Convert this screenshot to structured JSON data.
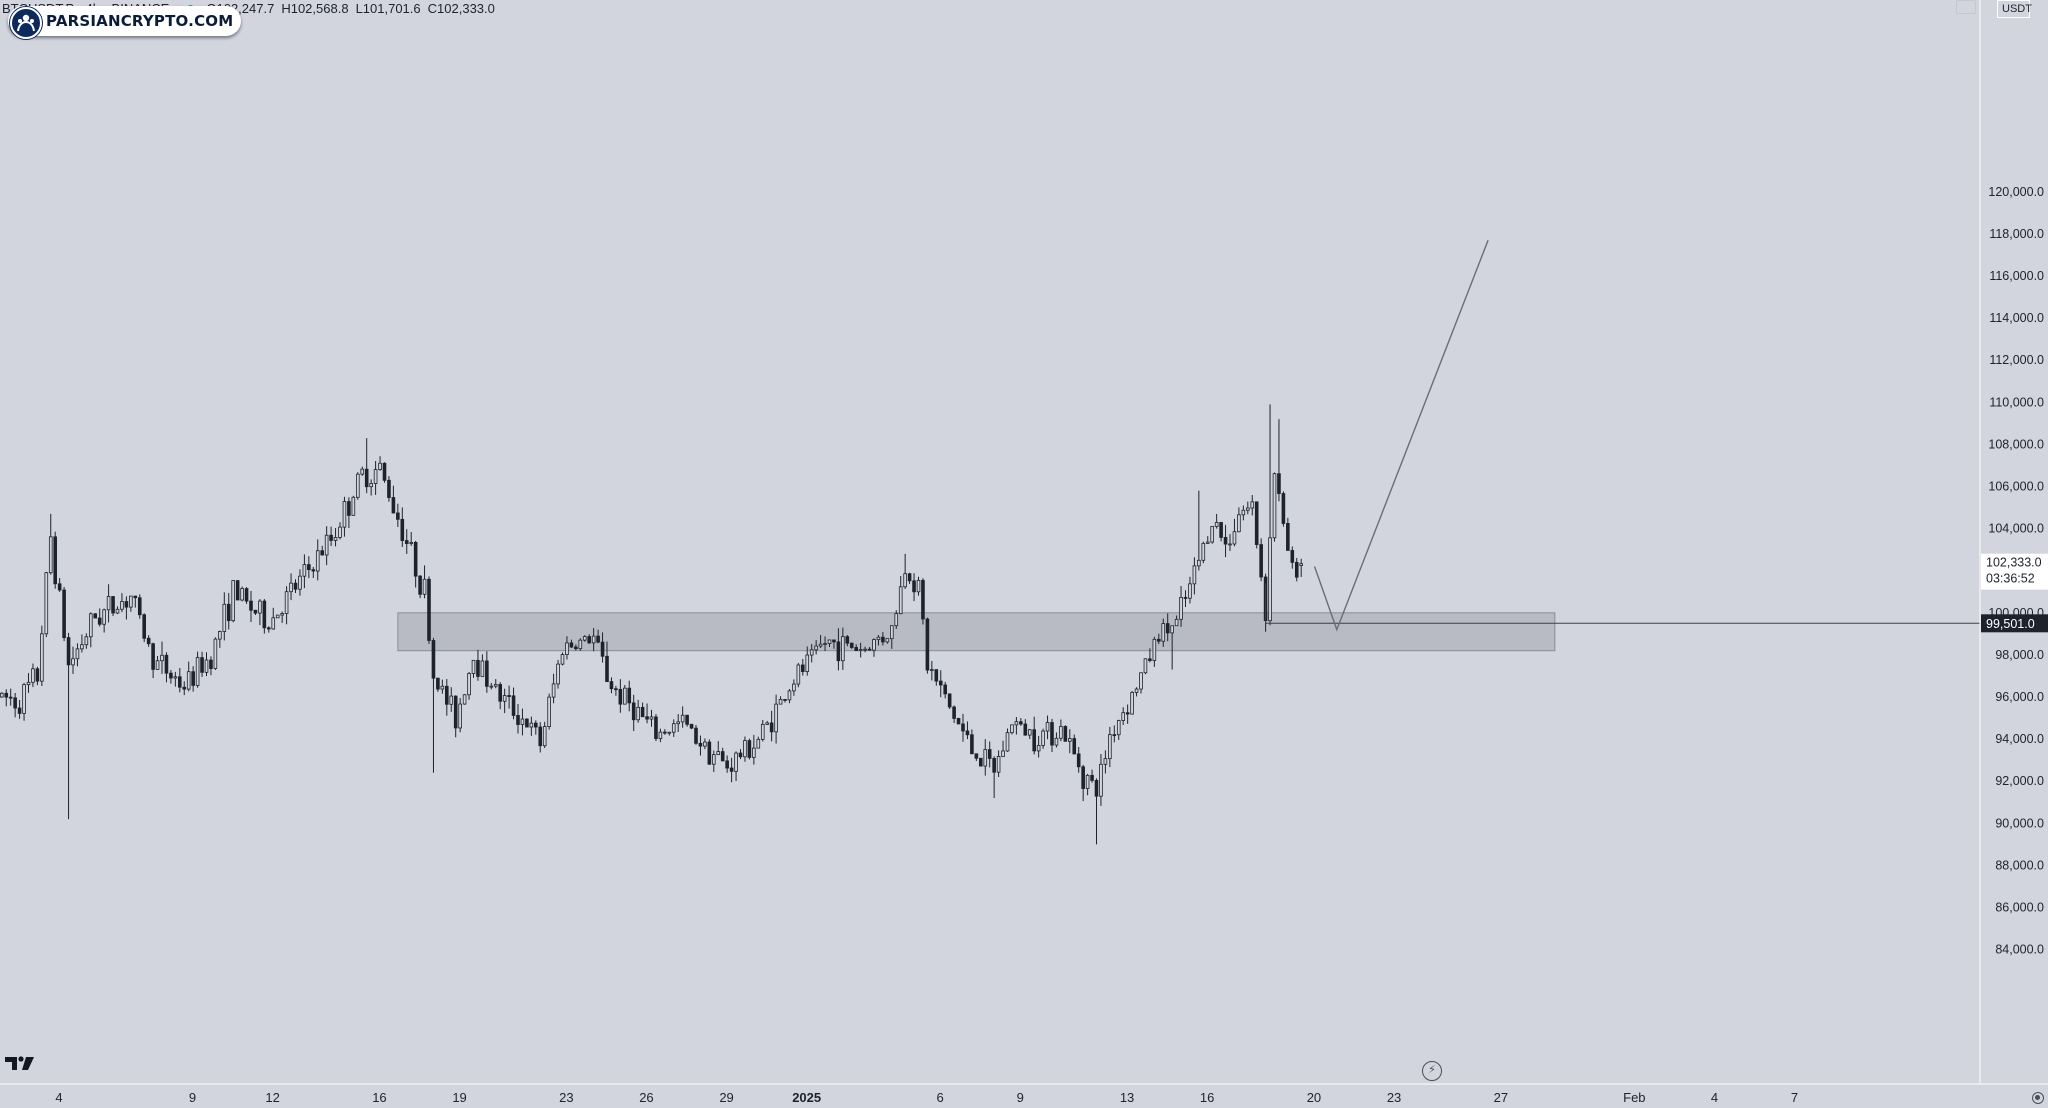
{
  "legend": {
    "symbol": "BTCUSDT.P · 4h · BINANCE",
    "open_label": "O",
    "open": "102,247.7",
    "high_label": "H",
    "high": "102,568.8",
    "low_label": "L",
    "low": "101,701.6",
    "close_label": "C",
    "close": "102,333.0",
    "status_color": "#2a9d8f"
  },
  "brand": {
    "text": "PARSIANCRYPTO.COM",
    "icon": "brand-logo-icon"
  },
  "axis": {
    "currency": "USDT"
  },
  "colors": {
    "background": "#d2d5de",
    "candle_up": "#1e222d",
    "candle_down": "#1e222d",
    "zone_fill": "#9ea1a8",
    "price_label_bg": "#ffffff",
    "hline_label_bg": "#1e222d"
  },
  "chart_data": {
    "type": "candlestick",
    "title": "BTCUSDT.P · 4h · BINANCE",
    "currency": "USDT",
    "ylim": [
      82800,
      121300
    ],
    "y_ticks": [
      84000,
      86000,
      88000,
      90000,
      92000,
      94000,
      96000,
      98000,
      100000,
      102000,
      104000,
      106000,
      108000,
      110000,
      112000,
      114000,
      116000,
      118000,
      120000
    ],
    "y_tick_labels": [
      "84,000.0",
      "86,000.0",
      "88,000.0",
      "90,000.0",
      "92,000.0",
      "94,000.0",
      "96,000.0",
      "98,000.0",
      "100,000.0",
      "102,000.0",
      "104,000.0",
      "106,000.0",
      "108,000.0",
      "110,000.0",
      "112,000.0",
      "114,000.0",
      "116,000.0",
      "118,000.0",
      "120,000.0"
    ],
    "x_ticks": [
      {
        "label": "4",
        "bar": 5,
        "bold": false
      },
      {
        "label": "9",
        "bar": 35,
        "bold": false
      },
      {
        "label": "12",
        "bar": 53,
        "bold": false
      },
      {
        "label": "16",
        "bar": 77,
        "bold": false
      },
      {
        "label": "19",
        "bar": 95,
        "bold": false
      },
      {
        "label": "23",
        "bar": 119,
        "bold": false
      },
      {
        "label": "26",
        "bar": 137,
        "bold": false
      },
      {
        "label": "29",
        "bar": 155,
        "bold": false
      },
      {
        "label": "2025",
        "bar": 173,
        "bold": true
      },
      {
        "label": "6",
        "bar": 203,
        "bold": false
      },
      {
        "label": "9",
        "bar": 221,
        "bold": false
      },
      {
        "label": "13",
        "bar": 245,
        "bold": false
      },
      {
        "label": "16",
        "bar": 263,
        "bold": false
      },
      {
        "label": "20",
        "bar": 287,
        "bold": false
      },
      {
        "label": "23",
        "bar": 305,
        "bold": false
      },
      {
        "label": "27",
        "bar": 329,
        "bold": false
      },
      {
        "label": "Feb",
        "bar": 359,
        "bold": false
      },
      {
        "label": "4",
        "bar": 377,
        "bold": false
      },
      {
        "label": "7",
        "bar": 395,
        "bold": false
      }
    ],
    "last_price": {
      "value": 102333.0,
      "label": "102,333.0",
      "countdown": "03:36:52"
    },
    "horizontal_line": {
      "value": 99501.0,
      "label": "99,501.0",
      "start_bar": 284
    },
    "zone": {
      "low": 98200,
      "high": 100000,
      "start_bar": 89,
      "end_bar": 349
    },
    "projection_path": [
      {
        "bar": 295,
        "value": 102200
      },
      {
        "bar": 300,
        "value": 99200
      },
      {
        "bar": 334,
        "value": 117700
      }
    ],
    "anchors": [
      {
        "bar": 0,
        "value": 96000
      },
      {
        "bar": 4,
        "value": 95800
      },
      {
        "bar": 8,
        "value": 97000
      },
      {
        "bar": 11,
        "value": 103600
      },
      {
        "bar": 15,
        "value": 97500
      },
      {
        "bar": 21,
        "value": 99800
      },
      {
        "bar": 29,
        "value": 100800
      },
      {
        "bar": 34,
        "value": 97800
      },
      {
        "bar": 41,
        "value": 96500
      },
      {
        "bar": 47,
        "value": 98000
      },
      {
        "bar": 52,
        "value": 101000
      },
      {
        "bar": 60,
        "value": 99500
      },
      {
        "bar": 66,
        "value": 101200
      },
      {
        "bar": 74,
        "value": 103500
      },
      {
        "bar": 81,
        "value": 106500
      },
      {
        "bar": 85,
        "value": 106800
      },
      {
        "bar": 90,
        "value": 104000
      },
      {
        "bar": 95,
        "value": 101000
      },
      {
        "bar": 97,
        "value": 97000
      },
      {
        "bar": 102,
        "value": 95000
      },
      {
        "bar": 106,
        "value": 98000
      },
      {
        "bar": 112,
        "value": 96000
      },
      {
        "bar": 117,
        "value": 95000
      },
      {
        "bar": 121,
        "value": 93800
      },
      {
        "bar": 126,
        "value": 98400
      },
      {
        "bar": 133,
        "value": 98800
      },
      {
        "bar": 137,
        "value": 96500
      },
      {
        "bar": 142,
        "value": 95500
      },
      {
        "bar": 147,
        "value": 94200
      },
      {
        "bar": 153,
        "value": 94800
      },
      {
        "bar": 159,
        "value": 93500
      },
      {
        "bar": 163,
        "value": 92700
      },
      {
        "bar": 170,
        "value": 94000
      },
      {
        "bar": 178,
        "value": 96800
      },
      {
        "bar": 185,
        "value": 98600
      },
      {
        "bar": 194,
        "value": 98300
      },
      {
        "bar": 200,
        "value": 99200
      },
      {
        "bar": 203,
        "value": 102100
      },
      {
        "bar": 206,
        "value": 101300
      },
      {
        "bar": 208,
        "value": 97500
      },
      {
        "bar": 213,
        "value": 95500
      },
      {
        "bar": 218,
        "value": 93500
      },
      {
        "bar": 223,
        "value": 92500
      },
      {
        "bar": 227,
        "value": 94800
      },
      {
        "bar": 232,
        "value": 94200
      },
      {
        "bar": 238,
        "value": 94500
      },
      {
        "bar": 243,
        "value": 92400
      },
      {
        "bar": 246,
        "value": 91500
      },
      {
        "bar": 249,
        "value": 94200
      },
      {
        "bar": 255,
        "value": 96500
      },
      {
        "bar": 260,
        "value": 99000
      },
      {
        "bar": 264,
        "value": 99500
      },
      {
        "bar": 268,
        "value": 101800
      },
      {
        "bar": 272,
        "value": 104500
      },
      {
        "bar": 275,
        "value": 103200
      },
      {
        "bar": 278,
        "value": 104800
      },
      {
        "bar": 281,
        "value": 105000
      },
      {
        "bar": 284,
        "value": 100200
      },
      {
        "bar": 286,
        "value": 106800
      },
      {
        "bar": 288,
        "value": 104000
      },
      {
        "bar": 290,
        "value": 102000
      },
      {
        "bar": 292,
        "value": 102333
      }
    ],
    "spikes": [
      {
        "bar": 11,
        "high": 104700
      },
      {
        "bar": 15,
        "low": 90200
      },
      {
        "bar": 82,
        "high": 108300
      },
      {
        "bar": 97,
        "low": 92400
      },
      {
        "bar": 203,
        "high": 102800
      },
      {
        "bar": 223,
        "low": 91200
      },
      {
        "bar": 246,
        "low": 89000
      },
      {
        "bar": 263,
        "low": 97300
      },
      {
        "bar": 269,
        "high": 105800
      },
      {
        "bar": 285,
        "high": 109900
      },
      {
        "bar": 287,
        "high": 109200
      }
    ]
  }
}
